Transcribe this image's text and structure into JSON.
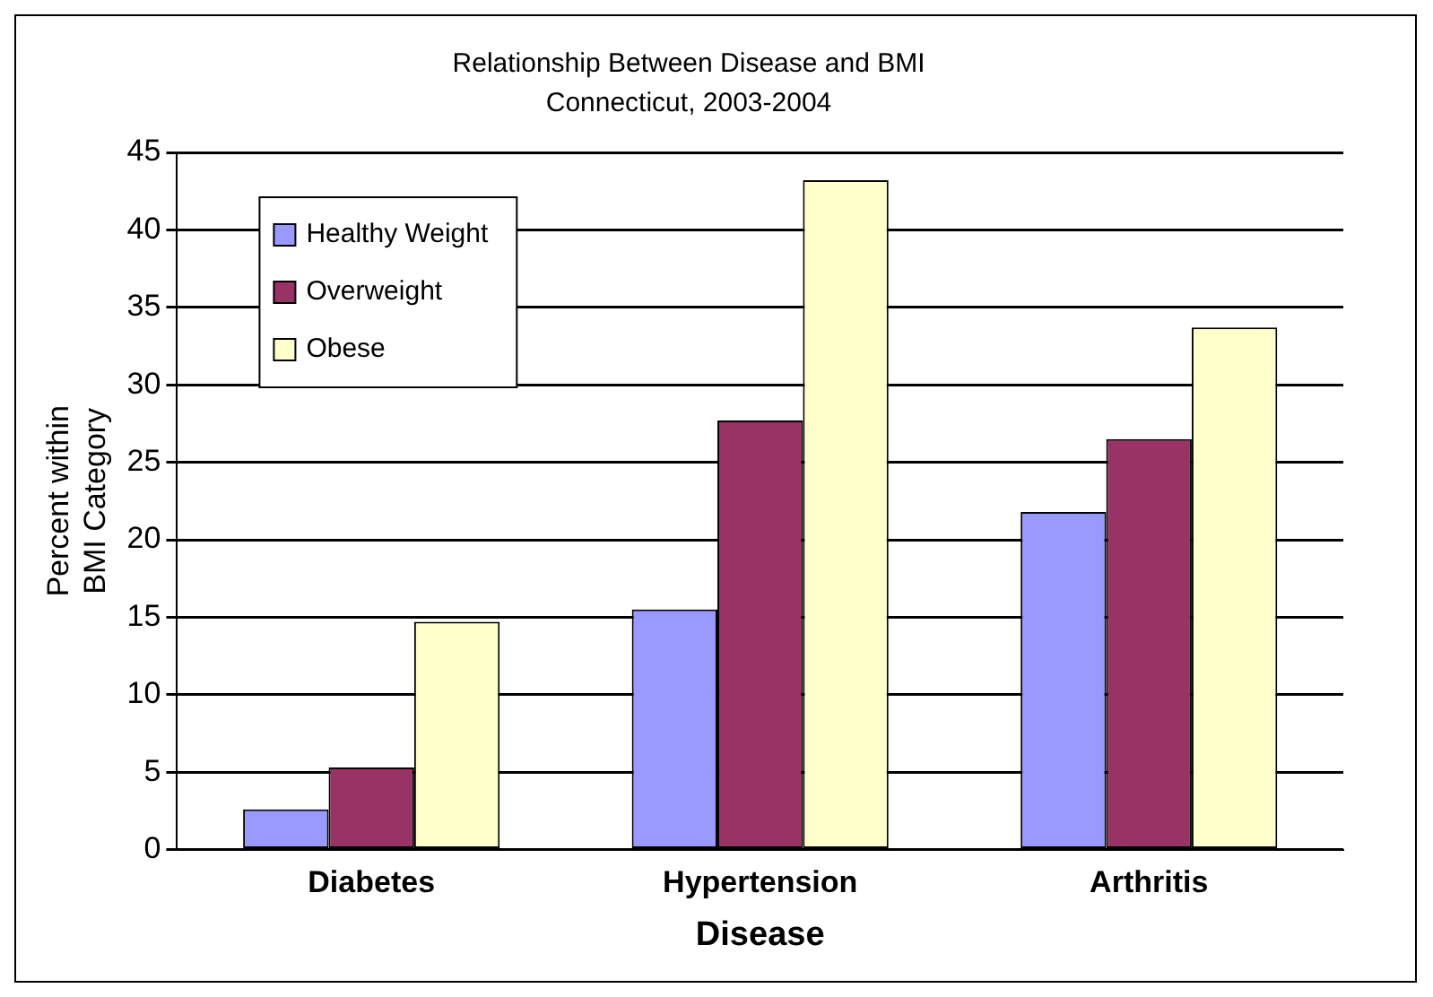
{
  "chart_data": {
    "type": "bar",
    "title": "Relationship Between Disease and BMI",
    "subtitle": "Connecticut, 2003-2004",
    "xlabel": "Disease",
    "ylabel": "Percent within\nBMI Category",
    "categories": [
      "Diabetes",
      "Hypertension",
      "Arthritis"
    ],
    "series": [
      {
        "name": "Healthy Weight",
        "color": "#9999ff",
        "values": [
          2.6,
          15.5,
          21.8
        ]
      },
      {
        "name": "Overweight",
        "color": "#993366",
        "values": [
          5.3,
          27.7,
          26.5
        ]
      },
      {
        "name": "Obese",
        "color": "#ffffcc",
        "values": [
          14.7,
          43.2,
          33.7
        ]
      }
    ],
    "ylim": [
      0,
      45
    ],
    "yticks": [
      0,
      5,
      10,
      15,
      20,
      25,
      30,
      35,
      40,
      45
    ],
    "grid": "y",
    "legend": "top left"
  }
}
